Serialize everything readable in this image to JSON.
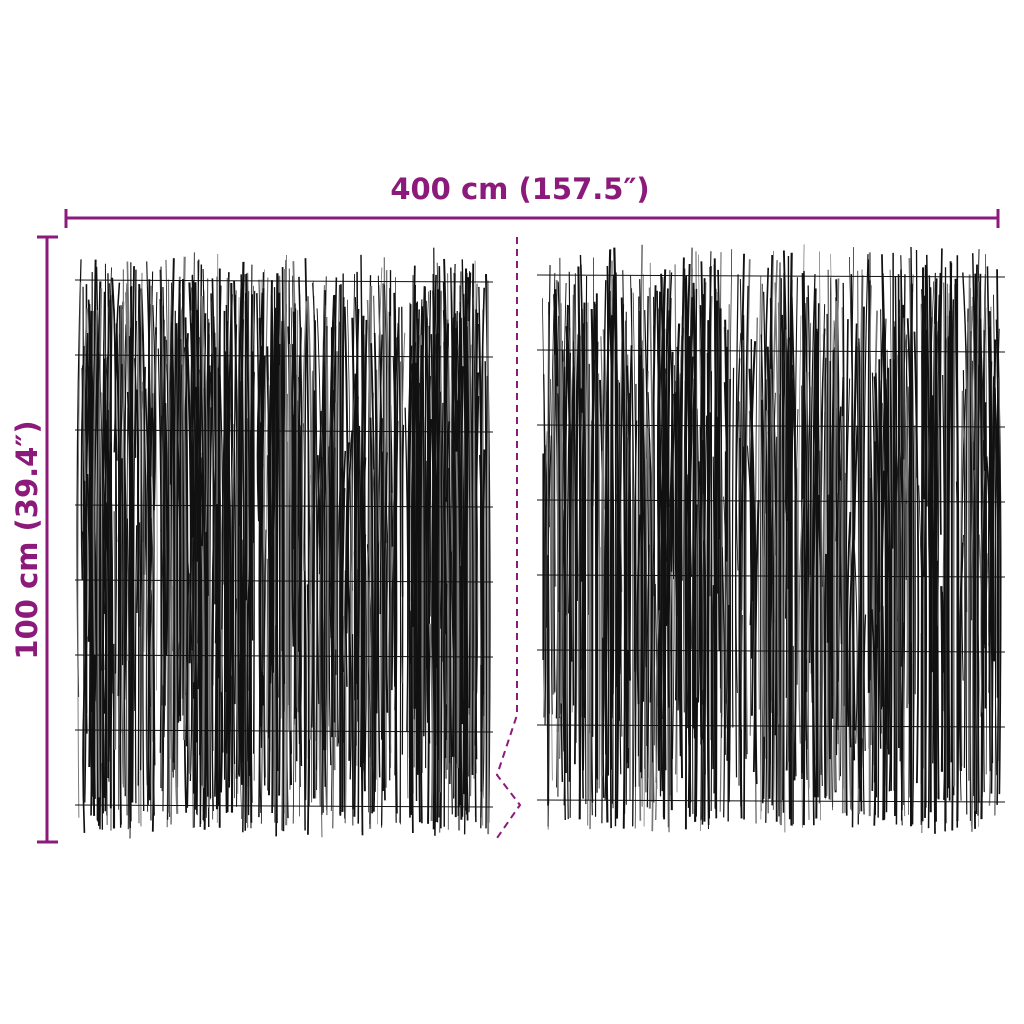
{
  "dimensions": {
    "width_label": "400 cm (157.5″)",
    "height_label": "100 cm (39.4″)"
  },
  "product": {
    "panels": 2,
    "material_icon": "reed-fence-panel",
    "split_indicator": "dashed-zigzag-line"
  },
  "colors": {
    "dimension": "#8b1a7b",
    "strands": "#111111",
    "background": "#ffffff"
  }
}
